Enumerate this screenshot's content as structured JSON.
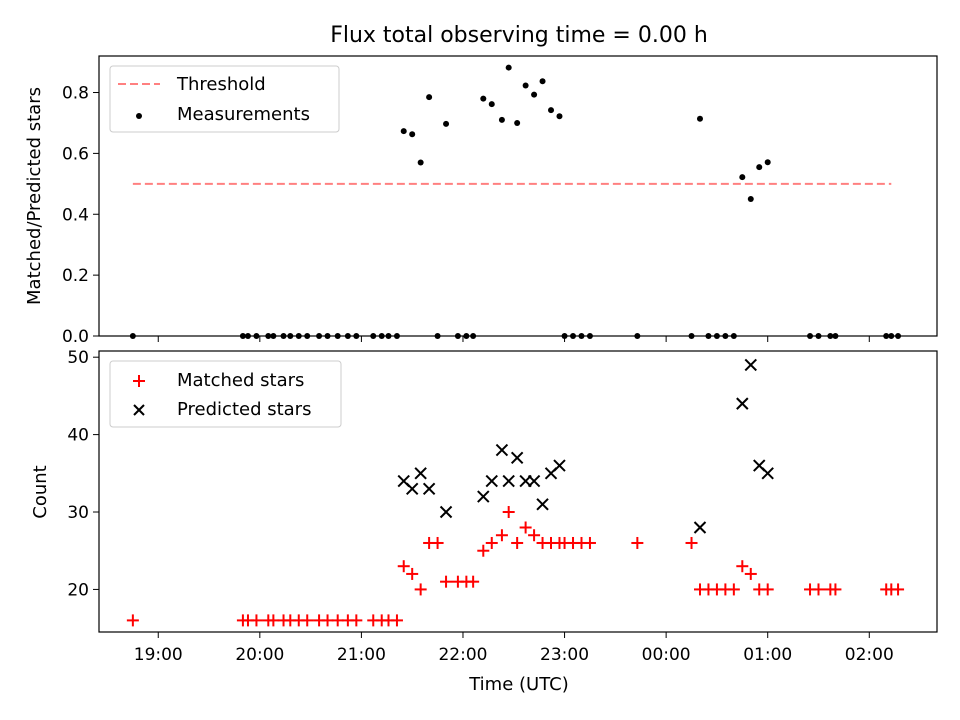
{
  "title": "Flux total observing time = 0.00 h",
  "chart_data": [
    {
      "type": "scatter",
      "ylabel": "Matched/Predicted stars",
      "ylim": [
        0,
        0.92
      ],
      "yticks": [
        0.0,
        0.2,
        0.4,
        0.6,
        0.8
      ],
      "ytick_labels": [
        "0.0",
        "0.2",
        "0.4",
        "0.6",
        "0.8"
      ],
      "xlim": [
        "18:25",
        "02:40"
      ],
      "xticks": [
        "19:00",
        "20:00",
        "21:00",
        "22:00",
        "23:00",
        "00:00",
        "01:00",
        "02:00"
      ],
      "legend_position": "upper-left",
      "threshold": {
        "name": "Threshold",
        "y": 0.5,
        "x_start": "18:45",
        "x_end": "02:13",
        "color": "#ff8080",
        "style": "dashed"
      },
      "series": [
        {
          "name": "Measurements",
          "marker": "dot",
          "color": "#000000",
          "points": [
            [
              "18:45",
              0.0
            ],
            [
              "19:50",
              0.0
            ],
            [
              "19:53",
              0.0
            ],
            [
              "19:58",
              0.0
            ],
            [
              "20:05",
              0.0
            ],
            [
              "20:08",
              0.0
            ],
            [
              "20:14",
              0.0
            ],
            [
              "20:18",
              0.0
            ],
            [
              "20:23",
              0.0
            ],
            [
              "20:28",
              0.0
            ],
            [
              "20:35",
              0.0
            ],
            [
              "20:40",
              0.0
            ],
            [
              "20:46",
              0.0
            ],
            [
              "20:52",
              0.0
            ],
            [
              "20:57",
              0.0
            ],
            [
              "21:07",
              0.0
            ],
            [
              "21:12",
              0.0
            ],
            [
              "21:16",
              0.0
            ],
            [
              "21:21",
              0.0
            ],
            [
              "21:25",
              0.673
            ],
            [
              "21:30",
              0.663
            ],
            [
              "21:35",
              0.57
            ],
            [
              "21:40",
              0.785
            ],
            [
              "21:45",
              0.0
            ],
            [
              "21:50",
              0.697
            ],
            [
              "21:57",
              0.0
            ],
            [
              "22:02",
              0.0
            ],
            [
              "22:06",
              0.0
            ],
            [
              "22:12",
              0.78
            ],
            [
              "22:17",
              0.762
            ],
            [
              "22:23",
              0.71
            ],
            [
              "22:27",
              0.882
            ],
            [
              "22:32",
              0.7
            ],
            [
              "22:37",
              0.823
            ],
            [
              "22:42",
              0.793
            ],
            [
              "22:47",
              0.837
            ],
            [
              "22:52",
              0.742
            ],
            [
              "22:57",
              0.722
            ],
            [
              "23:00",
              0.0
            ],
            [
              "23:05",
              0.0
            ],
            [
              "23:10",
              0.0
            ],
            [
              "23:15",
              0.0
            ],
            [
              "23:43",
              0.0
            ],
            [
              "00:15",
              0.0
            ],
            [
              "00:20",
              0.714
            ],
            [
              "00:25",
              0.0
            ],
            [
              "00:30",
              0.0
            ],
            [
              "00:35",
              0.0
            ],
            [
              "00:40",
              0.0
            ],
            [
              "00:45",
              0.522
            ],
            [
              "00:50",
              0.45
            ],
            [
              "00:55",
              0.555
            ],
            [
              "01:00",
              0.571
            ],
            [
              "01:25",
              0.0
            ],
            [
              "01:30",
              0.0
            ],
            [
              "01:37",
              0.0
            ],
            [
              "01:40",
              0.0
            ],
            [
              "02:10",
              0.0
            ],
            [
              "02:13",
              0.0
            ],
            [
              "02:17",
              0.0
            ]
          ]
        }
      ]
    },
    {
      "type": "scatter",
      "xlabel": "Time (UTC)",
      "ylabel": "Count",
      "ylim": [
        14.5,
        50.8
      ],
      "yticks": [
        20,
        30,
        40,
        50
      ],
      "ytick_labels": [
        "20",
        "30",
        "40",
        "50"
      ],
      "xlim": [
        "18:25",
        "02:40"
      ],
      "xticks": [
        "19:00",
        "20:00",
        "21:00",
        "22:00",
        "23:00",
        "00:00",
        "01:00",
        "02:00"
      ],
      "xtick_labels": [
        "19:00",
        "20:00",
        "21:00",
        "22:00",
        "23:00",
        "00:00",
        "01:00",
        "02:00"
      ],
      "legend_position": "upper-left",
      "series": [
        {
          "name": "Matched stars",
          "marker": "plus",
          "color": "#ff0000",
          "points": [
            [
              "18:45",
              16
            ],
            [
              "19:50",
              16
            ],
            [
              "19:53",
              16
            ],
            [
              "19:58",
              16
            ],
            [
              "20:05",
              16
            ],
            [
              "20:08",
              16
            ],
            [
              "20:14",
              16
            ],
            [
              "20:18",
              16
            ],
            [
              "20:23",
              16
            ],
            [
              "20:28",
              16
            ],
            [
              "20:35",
              16
            ],
            [
              "20:40",
              16
            ],
            [
              "20:46",
              16
            ],
            [
              "20:52",
              16
            ],
            [
              "20:57",
              16
            ],
            [
              "21:07",
              16
            ],
            [
              "21:12",
              16
            ],
            [
              "21:16",
              16
            ],
            [
              "21:21",
              16
            ],
            [
              "21:25",
              23
            ],
            [
              "21:30",
              22
            ],
            [
              "21:35",
              20
            ],
            [
              "21:40",
              26
            ],
            [
              "21:45",
              26
            ],
            [
              "21:50",
              21
            ],
            [
              "21:57",
              21
            ],
            [
              "22:02",
              21
            ],
            [
              "22:06",
              21
            ],
            [
              "22:12",
              25
            ],
            [
              "22:17",
              26
            ],
            [
              "22:23",
              27
            ],
            [
              "22:27",
              30
            ],
            [
              "22:32",
              26
            ],
            [
              "22:37",
              28
            ],
            [
              "22:42",
              27
            ],
            [
              "22:47",
              26
            ],
            [
              "22:52",
              26
            ],
            [
              "22:57",
              26
            ],
            [
              "23:00",
              26
            ],
            [
              "23:05",
              26
            ],
            [
              "23:10",
              26
            ],
            [
              "23:15",
              26
            ],
            [
              "23:43",
              26
            ],
            [
              "00:15",
              26
            ],
            [
              "00:20",
              20
            ],
            [
              "00:25",
              20
            ],
            [
              "00:30",
              20
            ],
            [
              "00:35",
              20
            ],
            [
              "00:40",
              20
            ],
            [
              "00:45",
              23
            ],
            [
              "00:50",
              22
            ],
            [
              "00:55",
              20
            ],
            [
              "01:00",
              20
            ],
            [
              "01:25",
              20
            ],
            [
              "01:30",
              20
            ],
            [
              "01:37",
              20
            ],
            [
              "01:40",
              20
            ],
            [
              "02:10",
              20
            ],
            [
              "02:13",
              20
            ],
            [
              "02:17",
              20
            ]
          ]
        },
        {
          "name": "Predicted stars",
          "marker": "x",
          "color": "#000000",
          "points": [
            [
              "21:25",
              34
            ],
            [
              "21:30",
              33
            ],
            [
              "21:35",
              35
            ],
            [
              "21:40",
              33
            ],
            [
              "21:50",
              30
            ],
            [
              "22:12",
              32
            ],
            [
              "22:17",
              34
            ],
            [
              "22:23",
              38
            ],
            [
              "22:27",
              34
            ],
            [
              "22:32",
              37
            ],
            [
              "22:37",
              34
            ],
            [
              "22:42",
              34
            ],
            [
              "22:47",
              31
            ],
            [
              "22:52",
              35
            ],
            [
              "22:57",
              36
            ],
            [
              "00:20",
              28
            ],
            [
              "00:45",
              44
            ],
            [
              "00:50",
              49
            ],
            [
              "00:55",
              36
            ],
            [
              "01:00",
              35
            ]
          ]
        }
      ]
    }
  ]
}
